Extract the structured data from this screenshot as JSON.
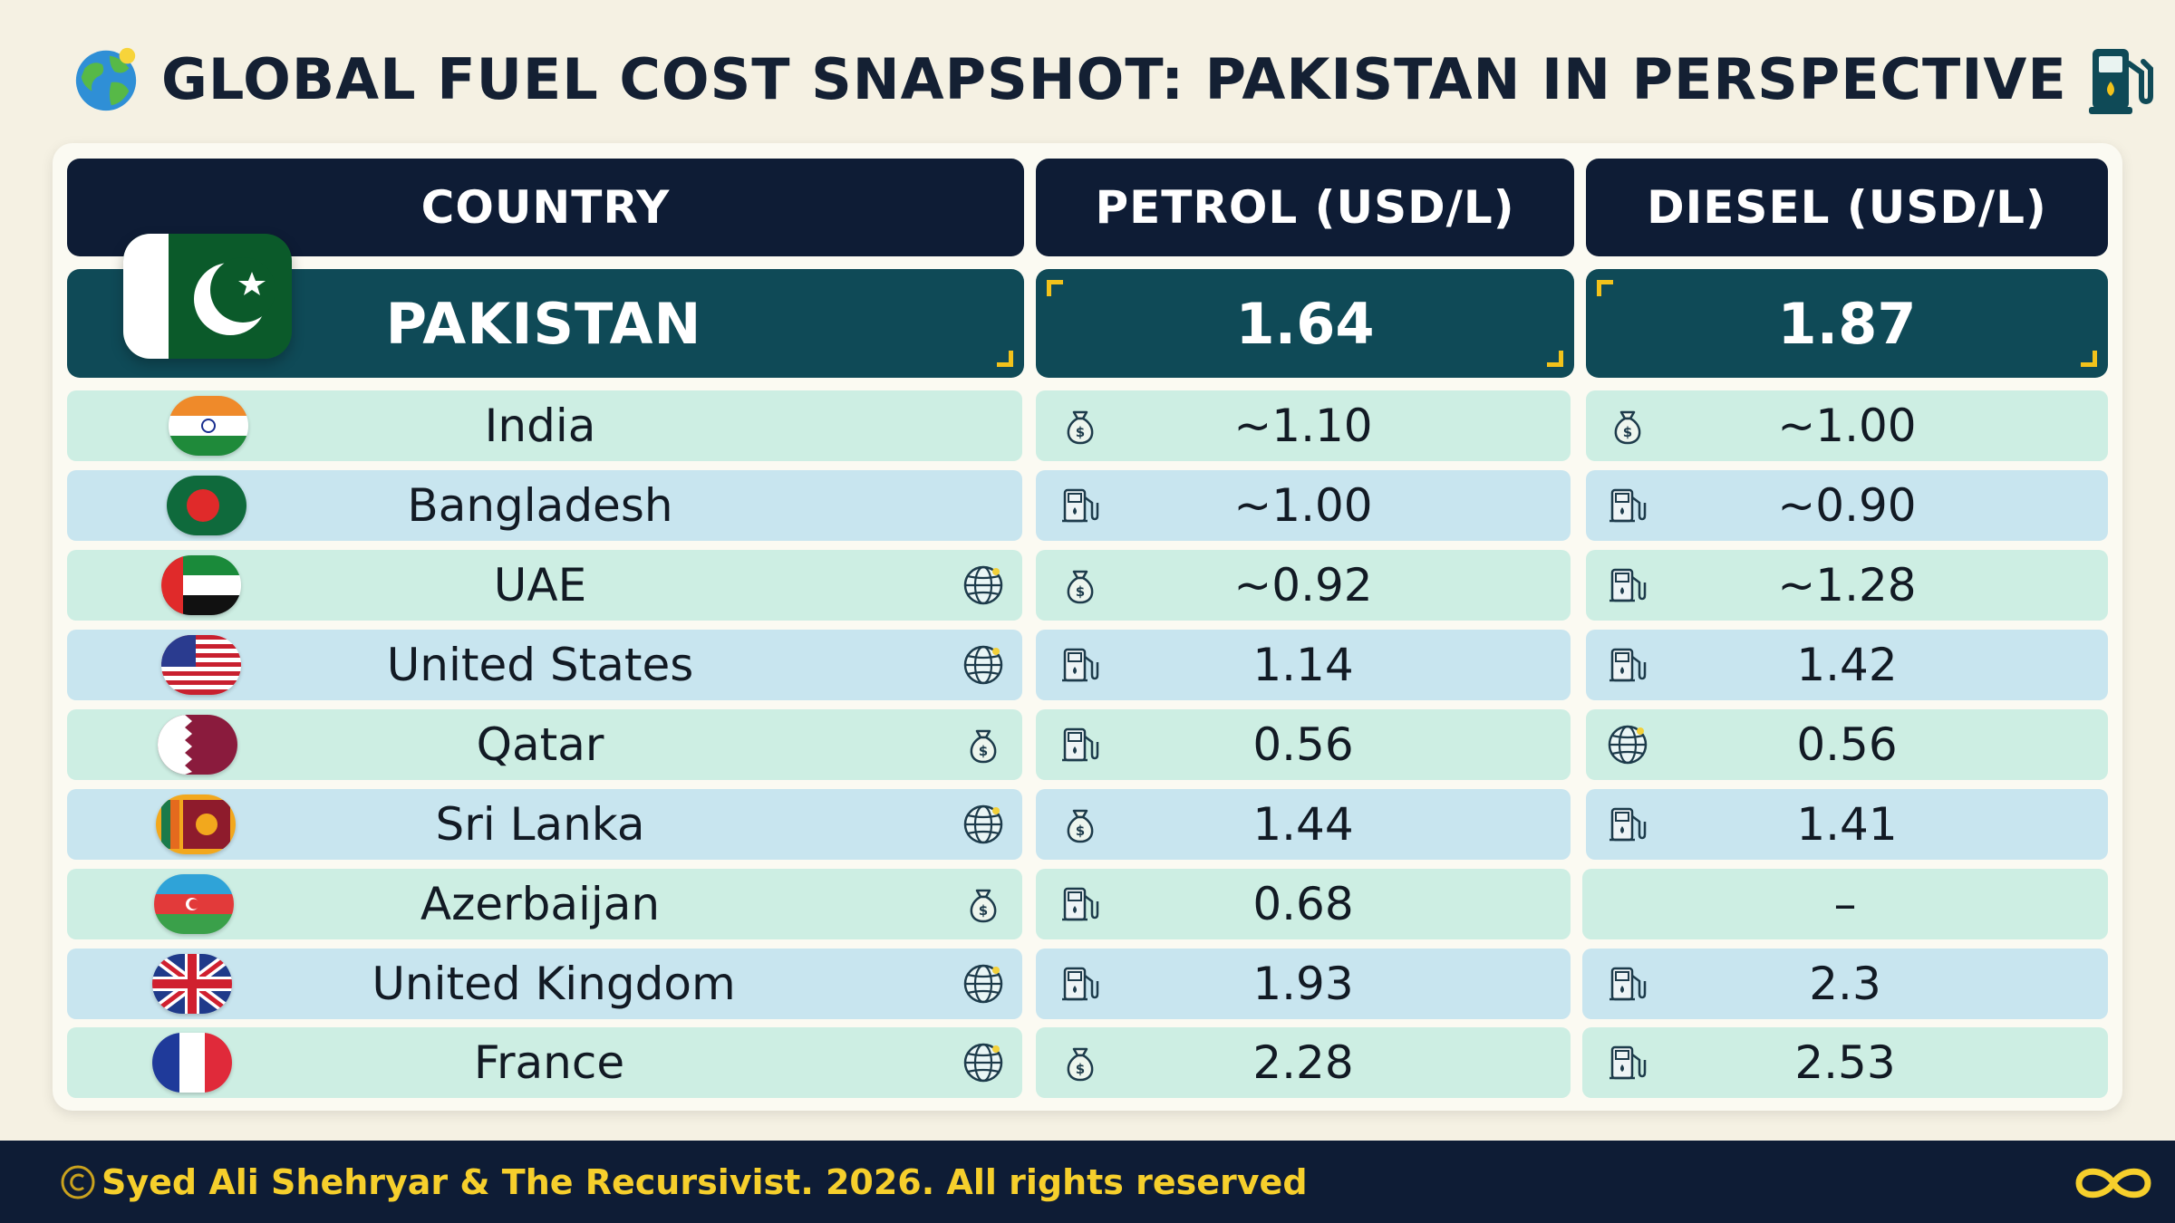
{
  "title": "GLOBAL FUEL COST SNAPSHOT: PAKISTAN IN PERSPECTIVE",
  "title_icons": {
    "left": "globe-icon",
    "right": "fuel-pump-icon"
  },
  "headers": {
    "country": "COUNTRY",
    "petrol": "PETROL (USD/L)",
    "diesel": "DIESEL (USD/L)"
  },
  "highlight": {
    "country": "PAKISTAN",
    "petrol": "1.64",
    "diesel": "1.87",
    "flag": "pakistan-flag"
  },
  "rows": [
    {
      "country": "India",
      "petrol": "~1.10",
      "diesel": "~1.00"
    },
    {
      "country": "Bangladesh",
      "petrol": "~1.00",
      "diesel": "~0.90"
    },
    {
      "country": "UAE",
      "petrol": "~0.92",
      "diesel": "~1.28"
    },
    {
      "country": "United States",
      "petrol": "1.14",
      "diesel": "1.42"
    },
    {
      "country": "Qatar",
      "petrol": "0.56",
      "diesel": "0.56"
    },
    {
      "country": "Sri Lanka",
      "petrol": "1.44",
      "diesel": "1.41"
    },
    {
      "country": "Azerbaijan",
      "petrol": "0.68",
      "diesel": "–"
    },
    {
      "country": "United Kingdom",
      "petrol": "1.93",
      "diesel": "2.3"
    },
    {
      "country": "France",
      "petrol": "2.28",
      "diesel": "2.53"
    }
  ],
  "footer": {
    "text": "Syed Ali Shehryar & The Recursivist. 2026. All rights reserved"
  },
  "colors": {
    "background": "#f5f1e3",
    "header": "#0e1c35",
    "highlight": "#0f4a57",
    "accent": "#f2c21b",
    "row_mint": "#cdeee3",
    "row_blue": "#c8e5ef",
    "footer_text": "#f6cf2c"
  }
}
